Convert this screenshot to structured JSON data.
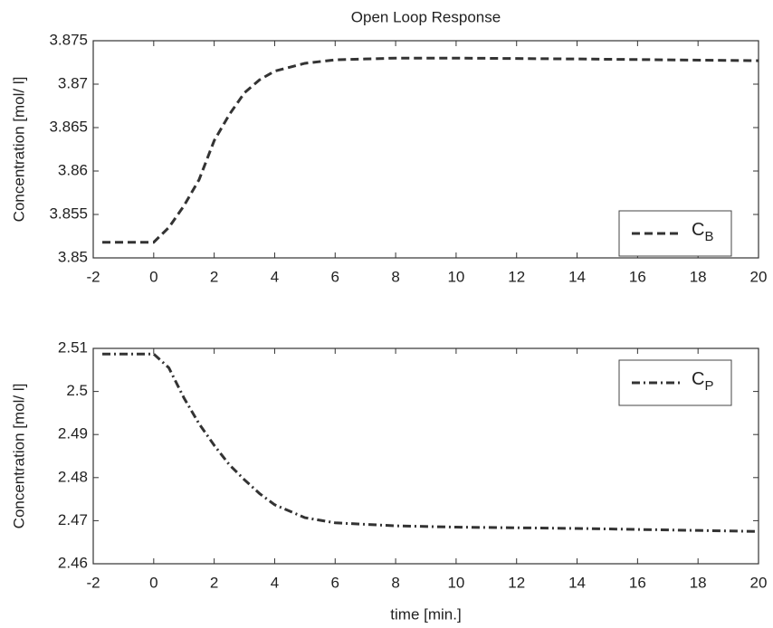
{
  "chart_data": [
    {
      "type": "line",
      "title": "Open Loop Response",
      "ylabel": "Concentration [mol/ l]",
      "x": [
        -1.7,
        0,
        0.5,
        1,
        1.5,
        2,
        2.5,
        3,
        3.5,
        4,
        5,
        6,
        7,
        8,
        10,
        14,
        20
      ],
      "series": [
        {
          "name": "C",
          "name_subscript": "B",
          "color": "#333333",
          "linestyle": "dashed",
          "values": [
            3.8518,
            3.8518,
            3.8535,
            3.856,
            3.859,
            3.8635,
            3.8665,
            3.869,
            3.8705,
            3.8715,
            3.8724,
            3.8728,
            3.8729,
            3.873,
            3.873,
            3.8729,
            3.8727
          ]
        }
      ],
      "xlim": [
        -2,
        20
      ],
      "xticks": [
        -2,
        0,
        2,
        4,
        6,
        8,
        10,
        12,
        14,
        16,
        18,
        20
      ],
      "ylim": [
        3.85,
        3.875
      ],
      "yticks": [
        3.85,
        3.855,
        3.86,
        3.865,
        3.87,
        3.875
      ],
      "legend": "lower right",
      "grid": false
    },
    {
      "type": "line",
      "xlabel": "time [min.]",
      "ylabel": "Concentration [mol/ l]",
      "x": [
        -1.7,
        0,
        0.5,
        1,
        1.5,
        2,
        2.5,
        3,
        3.5,
        4,
        5,
        6,
        8,
        10,
        14,
        20
      ],
      "series": [
        {
          "name": "C",
          "name_subscript": "P",
          "color": "#333333",
          "linestyle": "dashdot",
          "values": [
            2.5087,
            2.5087,
            2.5055,
            2.4985,
            2.4925,
            2.4875,
            2.483,
            2.4795,
            2.4763,
            2.4737,
            2.4707,
            2.4695,
            2.4688,
            2.4685,
            2.4682,
            2.4675
          ]
        }
      ],
      "xlim": [
        -2,
        20
      ],
      "xticks": [
        -2,
        0,
        2,
        4,
        6,
        8,
        10,
        12,
        14,
        16,
        18,
        20
      ],
      "ylim": [
        2.46,
        2.51
      ],
      "yticks": [
        2.46,
        2.47,
        2.48,
        2.49,
        2.5,
        2.51
      ],
      "legend": "upper right",
      "grid": false
    }
  ]
}
